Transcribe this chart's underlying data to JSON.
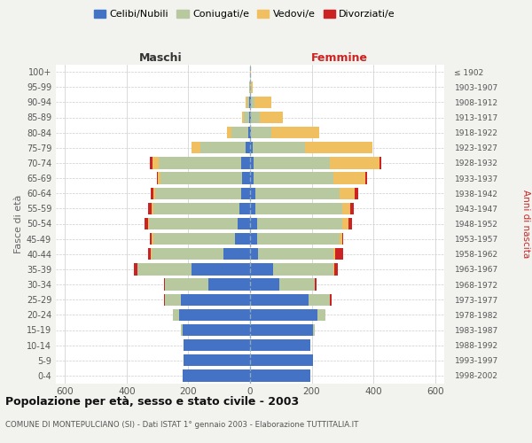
{
  "age_groups": [
    "0-4",
    "5-9",
    "10-14",
    "15-19",
    "20-24",
    "25-29",
    "30-34",
    "35-39",
    "40-44",
    "45-49",
    "50-54",
    "55-59",
    "60-64",
    "65-69",
    "70-74",
    "75-79",
    "80-84",
    "85-89",
    "90-94",
    "95-99",
    "100+"
  ],
  "birth_years": [
    "1998-2002",
    "1993-1997",
    "1988-1992",
    "1983-1987",
    "1978-1982",
    "1973-1977",
    "1968-1972",
    "1963-1967",
    "1958-1962",
    "1953-1957",
    "1948-1952",
    "1943-1947",
    "1938-1942",
    "1933-1937",
    "1928-1932",
    "1923-1927",
    "1918-1922",
    "1913-1917",
    "1908-1912",
    "1903-1907",
    "≤ 1902"
  ],
  "males": {
    "celibi": [
      220,
      215,
      215,
      220,
      230,
      225,
      135,
      190,
      85,
      50,
      40,
      35,
      30,
      25,
      28,
      15,
      5,
      3,
      2,
      1,
      1
    ],
    "coniugati": [
      0,
      0,
      0,
      3,
      20,
      50,
      140,
      175,
      235,
      265,
      288,
      280,
      278,
      265,
      268,
      145,
      55,
      18,
      8,
      2,
      0
    ],
    "vedovi": [
      0,
      0,
      0,
      0,
      0,
      0,
      0,
      0,
      3,
      3,
      3,
      3,
      5,
      8,
      20,
      30,
      15,
      5,
      3,
      0,
      0
    ],
    "divorziati": [
      0,
      0,
      0,
      0,
      0,
      3,
      5,
      12,
      8,
      8,
      10,
      13,
      10,
      5,
      8,
      0,
      0,
      0,
      0,
      0,
      0
    ]
  },
  "females": {
    "nubili": [
      195,
      205,
      195,
      205,
      220,
      190,
      95,
      75,
      25,
      22,
      22,
      18,
      18,
      12,
      12,
      8,
      3,
      3,
      3,
      1,
      0
    ],
    "coniugate": [
      0,
      0,
      0,
      5,
      25,
      70,
      115,
      195,
      245,
      268,
      278,
      280,
      272,
      258,
      248,
      170,
      65,
      28,
      12,
      2,
      1
    ],
    "vedove": [
      0,
      0,
      0,
      0,
      0,
      0,
      0,
      3,
      5,
      8,
      18,
      28,
      50,
      105,
      160,
      220,
      155,
      75,
      55,
      5,
      2
    ],
    "divorziate": [
      0,
      0,
      0,
      0,
      0,
      5,
      5,
      12,
      28,
      5,
      12,
      10,
      12,
      5,
      5,
      0,
      0,
      0,
      0,
      0,
      0
    ]
  },
  "colors": {
    "celibi": "#4472c4",
    "coniugati": "#b8c9a0",
    "vedovi": "#f0c060",
    "divorziati": "#cc2222"
  },
  "legend_labels": [
    "Celibi/Nubili",
    "Coniugati/e",
    "Vedovi/e",
    "Divorziati/e"
  ],
  "title": "Popolazione per età, sesso e stato civile - 2003",
  "subtitle": "COMUNE DI MONTEPULCIANO (SI) - Dati ISTAT 1° gennaio 2003 - Elaborazione TUTTITALIA.IT",
  "label_maschi": "Maschi",
  "label_femmine": "Femmine",
  "ylabel_left": "Fasce di età",
  "ylabel_right": "Anni di nascita",
  "xlim": 630,
  "background_color": "#f2f2ee",
  "bar_background": "#ffffff"
}
